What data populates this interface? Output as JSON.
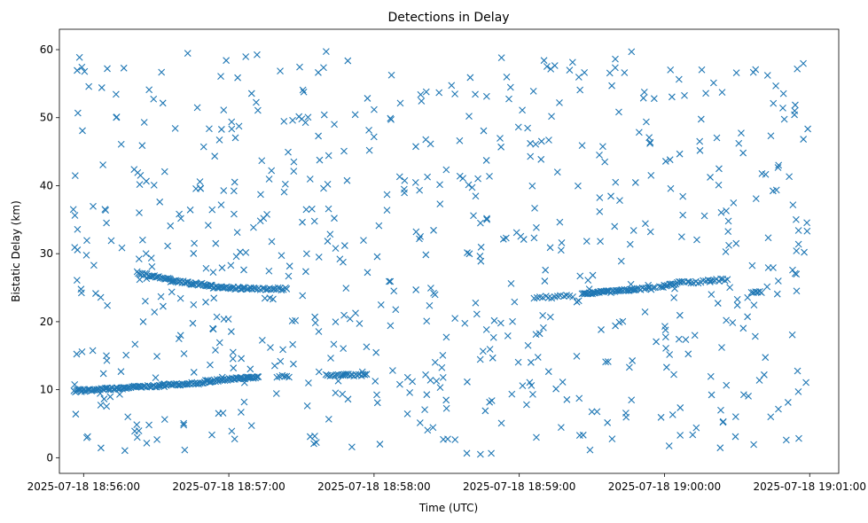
{
  "chart_data": {
    "type": "scatter",
    "title": "Detections in Delay",
    "xlabel": "Time (UTC)",
    "ylabel": "Bistatic Delay (km)",
    "marker": "x",
    "color": "#1f77b4",
    "grid": false,
    "legend": "none",
    "x_start": "2025-07-18 18:55:55",
    "x_end": "2025-07-18 19:01:00",
    "xlim": [
      "2025-07-18 18:55:50",
      "2025-07-18 19:01:12"
    ],
    "ylim": [
      -2.3,
      63
    ],
    "x_ticks": [
      "2025-07-18 18:56:00",
      "2025-07-18 18:57:00",
      "2025-07-18 18:58:00",
      "2025-07-18 18:59:00",
      "2025-07-18 19:00:00",
      "2025-07-18 19:01:00"
    ],
    "y_ticks": [
      "0",
      "10",
      "20",
      "30",
      "40",
      "50",
      "60"
    ],
    "y_tick_values": [
      0,
      10,
      20,
      30,
      40,
      50,
      60
    ],
    "tracks": [
      {
        "from": "2025-07-18 18:55:56",
        "to": "2025-07-18 18:56:17",
        "y_from": 9.8,
        "y_to": 10.3,
        "count": 42
      },
      {
        "from": "2025-07-18 18:56:17",
        "to": "2025-07-18 18:56:33",
        "y_from": 10.3,
        "y_to": 10.6,
        "count": 28
      },
      {
        "from": "2025-07-18 18:56:33",
        "to": "2025-07-18 18:56:50",
        "y_from": 10.7,
        "y_to": 11.0,
        "count": 30
      },
      {
        "from": "2025-07-18 18:56:50",
        "to": "2025-07-18 18:57:12",
        "y_from": 11.2,
        "y_to": 11.9,
        "count": 45
      },
      {
        "from": "2025-07-18 18:57:20",
        "to": "2025-07-18 18:57:25",
        "y_from": 12.0,
        "y_to": 12.0,
        "count": 6
      },
      {
        "from": "2025-07-18 18:57:40",
        "to": "2025-07-18 18:57:48",
        "y_from": 12.1,
        "y_to": 12.1,
        "count": 10
      },
      {
        "from": "2025-07-18 18:57:47",
        "to": "2025-07-18 18:57:57",
        "y_from": 12.2,
        "y_to": 12.1,
        "count": 14
      },
      {
        "from": "2025-07-18 18:56:22",
        "to": "2025-07-18 18:56:36",
        "y_from": 27.2,
        "y_to": 26.2,
        "count": 24
      },
      {
        "from": "2025-07-18 18:56:36",
        "to": "2025-07-18 18:56:53",
        "y_from": 26.0,
        "y_to": 25.3,
        "count": 34
      },
      {
        "from": "2025-07-18 18:56:53",
        "to": "2025-07-18 18:57:06",
        "y_from": 25.1,
        "y_to": 24.9,
        "count": 24
      },
      {
        "from": "2025-07-18 18:57:06",
        "to": "2025-07-18 18:57:24",
        "y_from": 24.9,
        "y_to": 24.8,
        "count": 26
      },
      {
        "from": "2025-07-18 18:59:06",
        "to": "2025-07-18 18:59:22",
        "y_from": 23.5,
        "y_to": 23.8,
        "count": 14
      },
      {
        "from": "2025-07-18 18:59:26",
        "to": "2025-07-18 18:59:48",
        "y_from": 24.1,
        "y_to": 24.7,
        "count": 44
      },
      {
        "from": "2025-07-18 18:59:48",
        "to": "2025-07-18 18:59:56",
        "y_from": 24.8,
        "y_to": 24.9,
        "count": 12
      },
      {
        "from": "2025-07-18 18:59:58",
        "to": "2025-07-18 19:00:08",
        "y_from": 25.1,
        "y_to": 25.9,
        "count": 16
      },
      {
        "from": "2025-07-18 19:00:10",
        "to": "2025-07-18 19:00:17",
        "y_from": 25.7,
        "y_to": 25.9,
        "count": 8
      },
      {
        "from": "2025-07-18 19:00:18",
        "to": "2025-07-18 19:00:26",
        "y_from": 26.0,
        "y_to": 26.2,
        "count": 10
      },
      {
        "from": "2025-07-18 19:00:36",
        "to": "2025-07-18 19:00:40",
        "y_from": 24.2,
        "y_to": 24.3,
        "count": 6
      }
    ],
    "clutter": {
      "count": 680,
      "y_range": [
        0.5,
        59.8
      ],
      "spread": "uniform"
    }
  }
}
